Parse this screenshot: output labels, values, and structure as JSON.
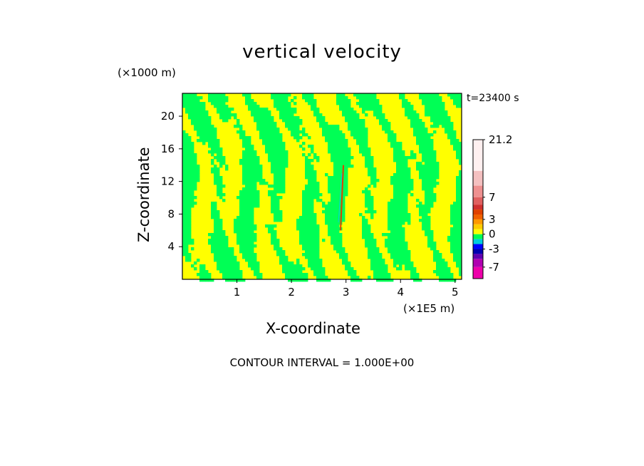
{
  "chart_data": {
    "type": "heatmap",
    "title": "vertical velocity",
    "time_label": "t=23400 s",
    "xlabel": "X-coordinate",
    "ylabel": "Z-coordinate",
    "x_unit": "(×1E5 m)",
    "y_unit": "(×1000 m)",
    "xlim": [
      0,
      5.12
    ],
    "ylim": [
      0,
      22.8
    ],
    "x_ticks": [
      "1",
      "2",
      "3",
      "4",
      "5"
    ],
    "y_ticks": [
      "4",
      "8",
      "12",
      "16",
      "20"
    ],
    "x_tick_values": [
      1,
      2,
      3,
      4,
      5
    ],
    "y_tick_values": [
      4,
      8,
      12,
      16,
      20
    ],
    "contour_interval_label": "CONTOUR INTERVAL = 1.000E+00",
    "colorbar": {
      "max_label": "21.2",
      "labels": [
        "21.2",
        "7",
        "3",
        "0",
        "-3",
        "-7"
      ],
      "label_values": [
        21.2,
        7,
        3,
        0,
        -3,
        -7
      ],
      "bands": [
        {
          "from": 14,
          "to": 21.2,
          "color": "#fff0f0"
        },
        {
          "from": 10,
          "to": 14,
          "color": "#f4c0c0"
        },
        {
          "from": 7,
          "to": 10,
          "color": "#ee9090"
        },
        {
          "from": 6,
          "to": 7,
          "color": "#e06060"
        },
        {
          "from": 5,
          "to": 6,
          "color": "#d03030"
        },
        {
          "from": 4,
          "to": 5,
          "color": "#e04000"
        },
        {
          "from": 3,
          "to": 4,
          "color": "#f06000"
        },
        {
          "from": 2,
          "to": 3,
          "color": "#ff9900"
        },
        {
          "from": 1,
          "to": 2,
          "color": "#ffcc00"
        },
        {
          "from": 0,
          "to": 1,
          "color": "#ffff00"
        },
        {
          "from": -1,
          "to": 0,
          "color": "#00ff55"
        },
        {
          "from": -2,
          "to": -1,
          "color": "#00ccdd"
        },
        {
          "from": -3,
          "to": -2,
          "color": "#0000ff"
        },
        {
          "from": -4,
          "to": -3,
          "color": "#0000b0"
        },
        {
          "from": -5,
          "to": -4,
          "color": "#6000b0"
        },
        {
          "from": -7,
          "to": -5,
          "color": "#b000b0"
        },
        {
          "from": -10,
          "to": -7,
          "color": "#ee00aa"
        }
      ]
    },
    "field_colors": {
      "positive": "#ffff00",
      "negative": "#00ff55"
    },
    "updraft_core": {
      "x": 2.9,
      "z_range": [
        6,
        14
      ]
    }
  }
}
